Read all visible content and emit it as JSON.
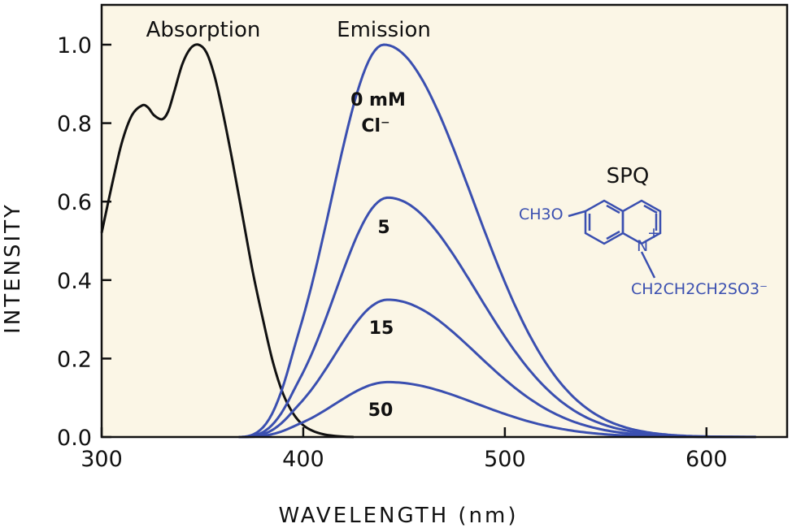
{
  "chart_data": {
    "type": "line",
    "xlabel": "WAVELENGTH  (nm)",
    "ylabel": "INTENSITY",
    "xlim": [
      300,
      640
    ],
    "ylim": [
      0,
      1.0
    ],
    "x_ticks": [
      "300",
      "400",
      "500",
      "600"
    ],
    "y_ticks": [
      "0.0",
      "0.2",
      "0.4",
      "0.6",
      "0.8",
      "1.0"
    ],
    "grid": false,
    "plot_background": "#fbf6e6",
    "annotations": {
      "absorption": "Absorption",
      "emission": "Emission",
      "conc_0_line1": "0 mM",
      "conc_0_line2": "Cl⁻",
      "conc_5": "5",
      "conc_15": "15",
      "conc_50": "50"
    },
    "molecule": {
      "name": "SPQ",
      "substituent_left": "CH3O",
      "chain": "CH2CH2CH2SO3⁻",
      "charge": "+",
      "nitrogen": "N"
    },
    "series": [
      {
        "name": "Absorption",
        "color": "#111111",
        "x": [
          300,
          305,
          310,
          315,
          320,
          323,
          326,
          330,
          333,
          336,
          340,
          344,
          348,
          352,
          356,
          360,
          365,
          370,
          375,
          380,
          385,
          390,
          395,
          400,
          405,
          410,
          415,
          420,
          425
        ],
        "y": [
          0.52,
          0.64,
          0.75,
          0.82,
          0.845,
          0.84,
          0.82,
          0.81,
          0.83,
          0.88,
          0.95,
          0.99,
          1.0,
          0.98,
          0.92,
          0.83,
          0.7,
          0.56,
          0.42,
          0.3,
          0.19,
          0.11,
          0.06,
          0.03,
          0.015,
          0.007,
          0.003,
          0.001,
          0.0
        ]
      },
      {
        "name": "Emission 0 mM Cl⁻",
        "color": "#3a4fb0",
        "peak_x": 440,
        "peak": 1.0
      },
      {
        "name": "Emission 5 mM",
        "color": "#3a4fb0",
        "peak_x": 442,
        "peak": 0.61
      },
      {
        "name": "Emission 15 mM",
        "color": "#3a4fb0",
        "peak_x": 442,
        "peak": 0.35
      },
      {
        "name": "Emission 50 mM",
        "color": "#3a4fb0",
        "peak_x": 442,
        "peak": 0.14
      }
    ]
  }
}
